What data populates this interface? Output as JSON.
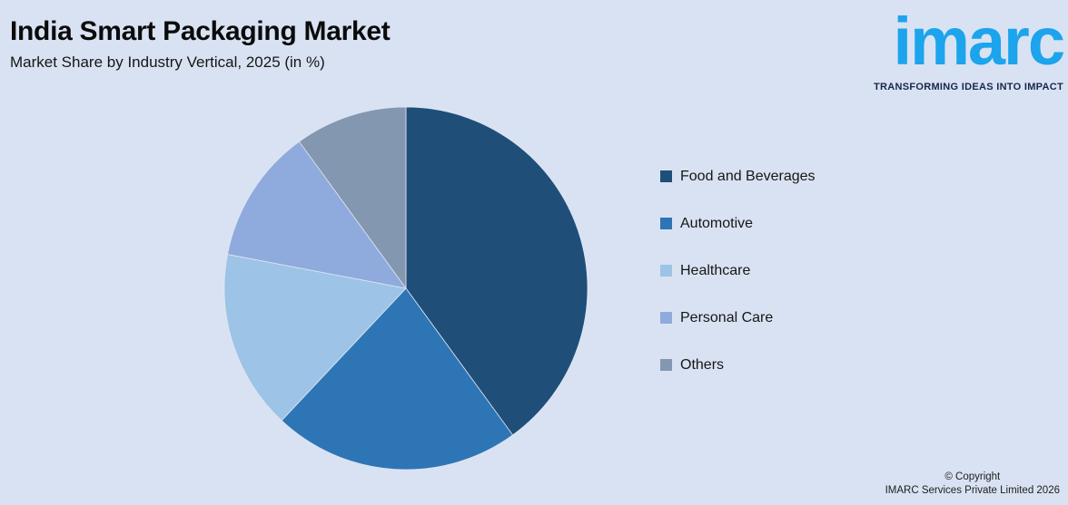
{
  "header": {
    "title": "India Smart Packaging Market",
    "subtitle": "Market Share by Industry Vertical, 2025 (in %)"
  },
  "logo": {
    "brand": "imarc",
    "tagline": "TRANSFORMING IDEAS INTO IMPACT",
    "brand_color": "#1ca4ec",
    "tagline_color": "#16284c"
  },
  "chart_data": {
    "type": "pie",
    "title": "India Smart Packaging Market",
    "subtitle": "Market Share by Industry Vertical, 2025 (in %)",
    "unit": "%",
    "start_angle_deg": 0,
    "direction": "clockwise",
    "legend_position": "right",
    "slices": [
      {
        "label": "Food and Beverages",
        "value": 40,
        "color": "#1f4e79"
      },
      {
        "label": "Automotive",
        "value": 22,
        "color": "#2e75b6"
      },
      {
        "label": "Healthcare",
        "value": 16,
        "color": "#9dc3e6"
      },
      {
        "label": "Personal Care",
        "value": 12,
        "color": "#8faadc"
      },
      {
        "label": "Others",
        "value": 10,
        "color": "#8497b0"
      }
    ]
  },
  "footer": {
    "copyright_line1": "© Copyright",
    "copyright_line2": "IMARC Services Private Limited 2026"
  },
  "colors": {
    "background": "#d9e2f2",
    "slice_border": "#dde6f3"
  }
}
